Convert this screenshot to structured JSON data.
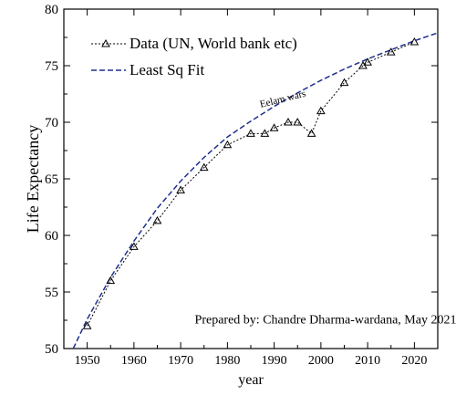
{
  "chart_data": {
    "type": "line",
    "xlabel": "year",
    "ylabel": "Life Expectancy",
    "xlim": [
      1945,
      2025
    ],
    "ylim": [
      50,
      80
    ],
    "x_ticks": [
      1950,
      1960,
      1970,
      1980,
      1990,
      2000,
      2010,
      2020
    ],
    "y_ticks": [
      50,
      55,
      60,
      65,
      70,
      75,
      80
    ],
    "grid": false,
    "legend_position": "top-left",
    "series": [
      {
        "name": "Data (UN, World bank etc)",
        "style": "dotted-with-triangle-markers",
        "color": "#000000",
        "x": [
          1950,
          1955,
          1960,
          1965,
          1970,
          1975,
          1980,
          1985,
          1988,
          1990,
          1993,
          1995,
          1998,
          2000,
          2005,
          2009,
          2010,
          2015,
          2020
        ],
        "y": [
          52.0,
          56.0,
          59.0,
          61.3,
          64.0,
          66.0,
          68.0,
          69.0,
          69.0,
          69.5,
          70.0,
          70.0,
          69.0,
          71.0,
          73.5,
          75.0,
          75.3,
          76.2,
          77.1
        ]
      },
      {
        "name": "Least Sq Fit",
        "style": "dashed",
        "color": "#1f2f8f",
        "x": [
          1947,
          1950,
          1955,
          1960,
          1965,
          1970,
          1975,
          1980,
          1985,
          1990,
          1995,
          2000,
          2005,
          2010,
          2015,
          2020,
          2025
        ],
        "y": [
          50.0,
          52.6,
          56.3,
          59.5,
          62.4,
          64.8,
          66.9,
          68.7,
          70.1,
          71.4,
          72.6,
          73.7,
          74.7,
          75.6,
          76.4,
          77.2,
          77.9
        ]
      }
    ],
    "annotations": [
      {
        "text": "Eelam wars",
        "x": 1992,
        "y": 71.8
      },
      {
        "text": "Prepared by: Chandre Dharma-wardana, May 2021",
        "x": 2001,
        "y": 52.2
      }
    ]
  }
}
